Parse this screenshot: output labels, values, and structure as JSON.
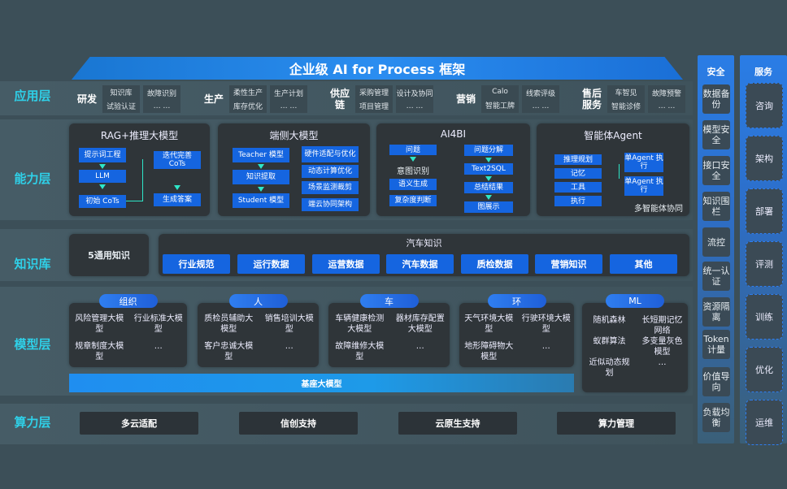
{
  "title": "企业级 AI for Process 框架",
  "layers": {
    "app": "应用层",
    "capability": "能力层",
    "knowledge": "知识库",
    "model": "模型层",
    "compute": "算力层"
  },
  "app_groups": [
    {
      "name": "研发",
      "items": [
        "知识库",
        "试验认证",
        "故障识别",
        "… …"
      ]
    },
    {
      "name": "生产",
      "items": [
        "柔性生产",
        "库存优化",
        "生产计划",
        "… …"
      ]
    },
    {
      "name": "供应链",
      "items": [
        "采购管理",
        "项目管理",
        "设计及协同",
        "… …"
      ]
    },
    {
      "name": "营销",
      "items": [
        "Calo",
        "智能工牌",
        "线索评级",
        "… …"
      ]
    },
    {
      "name": "售后服务",
      "items": [
        "车智见",
        "智能诊修",
        "故障预警",
        "… …"
      ]
    }
  ],
  "capability": {
    "rag": {
      "title": "RAG+推理大模型",
      "steps": [
        "提示词工程",
        "LLM",
        "初始 CoTs",
        "迭代完善 CoTs",
        "生成答案"
      ]
    },
    "edge": {
      "title": "端侧大模型",
      "steps": [
        "Teacher 模型",
        "知识提取",
        "Student 模型"
      ],
      "features": [
        "硬件适配与优化",
        "动态计算优化",
        "场景监测裁剪",
        "端云协同架构"
      ]
    },
    "ai4bi": {
      "title": "AI4BI",
      "left": [
        "问题",
        "意图识别",
        "语义生成",
        "复杂度判断"
      ],
      "right": [
        "问题分解",
        "Text2SQL",
        "总结结果",
        "图展示"
      ]
    },
    "agent": {
      "title": "智能体Agent",
      "modules": [
        "推理规划",
        "记忆",
        "工具",
        "执行"
      ],
      "executors": [
        "单Agent 执行",
        "单Agent 执行"
      ],
      "footer": "多智能体协同"
    }
  },
  "knowledge": {
    "general": "5通用知识",
    "auto_title": "汽车知识",
    "auto_items": [
      "行业规范",
      "运行数据",
      "运营数据",
      "汽车数据",
      "质检数据",
      "营销知识",
      "其他"
    ]
  },
  "model": {
    "groups": [
      {
        "head": "组织",
        "items": [
          "风险管理大模型",
          "行业标准大模型",
          "规章制度大模型",
          "…"
        ]
      },
      {
        "head": "人",
        "items": [
          "质检员辅助大模型",
          "销售培训大模型",
          "客户忠诚大模型",
          "…"
        ]
      },
      {
        "head": "车",
        "items": [
          "车辆健康检测大模型",
          "器材库存配置大模型",
          "故障维修大模型",
          "…"
        ]
      },
      {
        "head": "环",
        "items": [
          "天气环境大模型",
          "行驶环境大模型",
          "地形障碍物大模型",
          "…"
        ]
      },
      {
        "head": "ML",
        "items": [
          "随机森林",
          "长短期记忆网络",
          "蚁群算法",
          "多变量灰色模型",
          "近似动态规划",
          "…"
        ]
      }
    ],
    "base": "基座大模型"
  },
  "compute": [
    "多云适配",
    "信创支持",
    "云原生支持",
    "算力管理"
  ],
  "security": {
    "title": "安全",
    "items": [
      "数据备份",
      "模型安全",
      "接口安全",
      "知识围栏",
      "流控",
      "统一认证",
      "资源隔离",
      "Token计量",
      "价值导向",
      "负载均衡"
    ]
  },
  "service": {
    "title": "服务",
    "items": [
      "咨询",
      "架构",
      "部署",
      "评测",
      "训练",
      "优化",
      "运维"
    ]
  },
  "colors": {
    "background": "#3c4f58",
    "accent_blue": "#1565e0",
    "label_cyan": "#2fd0e8",
    "panel": "#2f3539"
  }
}
